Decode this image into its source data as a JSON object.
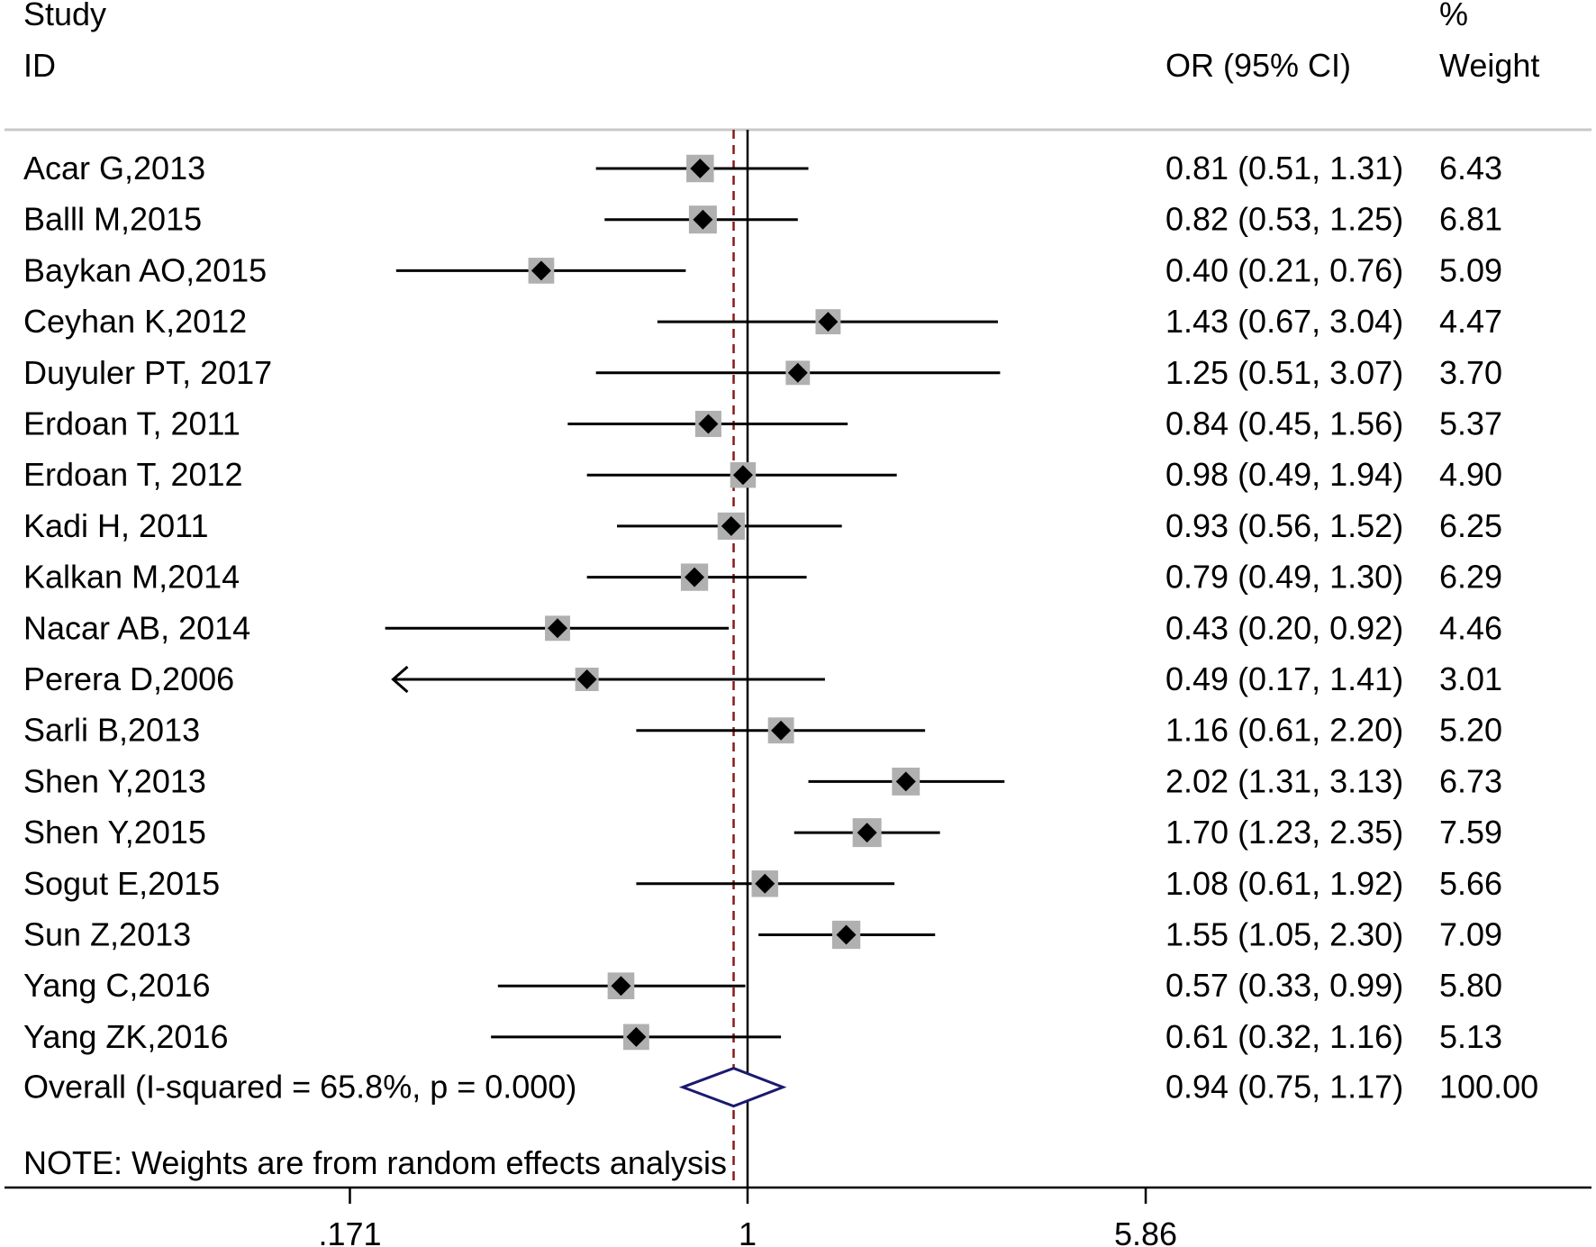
{
  "header": {
    "study_line1": "Study",
    "study_line2": "ID",
    "or_label": "OR (95% CI)",
    "weight_line1": "%",
    "weight_line2": "Weight"
  },
  "chart_data": {
    "type": "forest",
    "scale": "log",
    "null_value": 1,
    "pooled_estimate": 0.94,
    "x_ticks": [
      {
        "value": 0.171,
        "label": ".171"
      },
      {
        "value": 1,
        "label": "1"
      },
      {
        "value": 5.86,
        "label": "5.86"
      }
    ],
    "studies": [
      {
        "id": "Acar G,2013",
        "or": 0.81,
        "lower": 0.51,
        "upper": 1.31,
        "text": "0.81 (0.51, 1.31)",
        "weight": 6.43,
        "weight_text": "6.43"
      },
      {
        "id": "Balll M,2015",
        "or": 0.82,
        "lower": 0.53,
        "upper": 1.25,
        "text": "0.82 (0.53, 1.25)",
        "weight": 6.81,
        "weight_text": "6.81"
      },
      {
        "id": "Baykan AO,2015",
        "or": 0.4,
        "lower": 0.21,
        "upper": 0.76,
        "text": "0.40 (0.21, 0.76)",
        "weight": 5.09,
        "weight_text": "5.09"
      },
      {
        "id": "Ceyhan K,2012",
        "or": 1.43,
        "lower": 0.67,
        "upper": 3.04,
        "text": "1.43 (0.67, 3.04)",
        "weight": 4.47,
        "weight_text": "4.47"
      },
      {
        "id": "Duyuler PT, 2017",
        "or": 1.25,
        "lower": 0.51,
        "upper": 3.07,
        "text": "1.25 (0.51, 3.07)",
        "weight": 3.7,
        "weight_text": "3.70"
      },
      {
        "id": "Erdoan T, 2011",
        "or": 0.84,
        "lower": 0.45,
        "upper": 1.56,
        "text": "0.84 (0.45, 1.56)",
        "weight": 5.37,
        "weight_text": "5.37"
      },
      {
        "id": "Erdoan T, 2012",
        "or": 0.98,
        "lower": 0.49,
        "upper": 1.94,
        "text": "0.98 (0.49, 1.94)",
        "weight": 4.9,
        "weight_text": "4.90"
      },
      {
        "id": "Kadi H, 2011",
        "or": 0.93,
        "lower": 0.56,
        "upper": 1.52,
        "text": "0.93 (0.56, 1.52)",
        "weight": 6.25,
        "weight_text": "6.25"
      },
      {
        "id": "Kalkan M,2014",
        "or": 0.79,
        "lower": 0.49,
        "upper": 1.3,
        "text": "0.79 (0.49, 1.30)",
        "weight": 6.29,
        "weight_text": "6.29"
      },
      {
        "id": "Nacar AB, 2014",
        "or": 0.43,
        "lower": 0.2,
        "upper": 0.92,
        "text": "0.43 (0.20, 0.92)",
        "weight": 4.46,
        "weight_text": "4.46"
      },
      {
        "id": "Perera D,2006",
        "or": 0.49,
        "lower": 0.17,
        "upper": 1.41,
        "text": "0.49 (0.17, 1.41)",
        "weight": 3.01,
        "weight_text": "3.01",
        "clipped_lower": true
      },
      {
        "id": "Sarli B,2013",
        "or": 1.16,
        "lower": 0.61,
        "upper": 2.2,
        "text": "1.16 (0.61, 2.20)",
        "weight": 5.2,
        "weight_text": "5.20"
      },
      {
        "id": "Shen Y,2013",
        "or": 2.02,
        "lower": 1.31,
        "upper": 3.13,
        "text": "2.02 (1.31, 3.13)",
        "weight": 6.73,
        "weight_text": "6.73"
      },
      {
        "id": "Shen Y,2015",
        "or": 1.7,
        "lower": 1.23,
        "upper": 2.35,
        "text": "1.70 (1.23, 2.35)",
        "weight": 7.59,
        "weight_text": "7.59"
      },
      {
        "id": "Sogut E,2015",
        "or": 1.08,
        "lower": 0.61,
        "upper": 1.92,
        "text": "1.08 (0.61, 1.92)",
        "weight": 5.66,
        "weight_text": "5.66"
      },
      {
        "id": "Sun Z,2013",
        "or": 1.55,
        "lower": 1.05,
        "upper": 2.3,
        "text": "1.55 (1.05, 2.30)",
        "weight": 7.09,
        "weight_text": "7.09"
      },
      {
        "id": "Yang C,2016",
        "or": 0.57,
        "lower": 0.33,
        "upper": 0.99,
        "text": "0.57 (0.33, 0.99)",
        "weight": 5.8,
        "weight_text": "5.80"
      },
      {
        "id": "Yang ZK,2016",
        "or": 0.61,
        "lower": 0.32,
        "upper": 1.16,
        "text": "0.61 (0.32, 1.16)",
        "weight": 5.13,
        "weight_text": "5.13"
      }
    ],
    "overall": {
      "id": "Overall  (I-squared = 65.8%, p = 0.000)",
      "or": 0.94,
      "lower": 0.75,
      "upper": 1.17,
      "text": "0.94 (0.75, 1.17)",
      "weight_text": "100.00"
    },
    "note": "NOTE: Weights are from random effects analysis",
    "colors": {
      "line": "#000000",
      "box": "#b0b0b0",
      "marker": "#000000",
      "pooled_line": "#8b1a1a",
      "diamond": "#1a1a6e",
      "rule": "#c8c8c8"
    }
  }
}
